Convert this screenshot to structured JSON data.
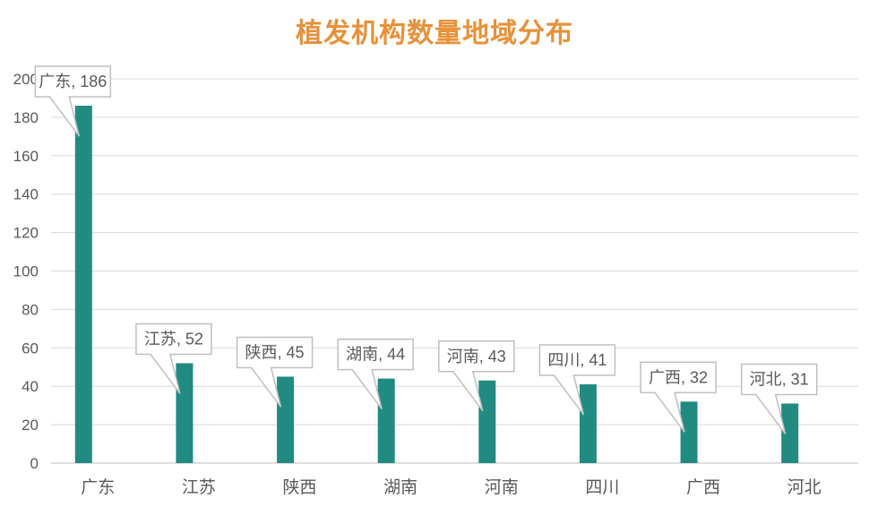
{
  "chart_data": {
    "type": "bar",
    "title": "植发机构数量地域分布",
    "categories": [
      "广东",
      "江苏",
      "陕西",
      "湖南",
      "河南",
      "四川",
      "广西",
      "河北"
    ],
    "values": [
      186,
      52,
      45,
      44,
      43,
      41,
      32,
      31
    ],
    "data_labels": [
      "广东, 186",
      "江苏, 52",
      "陕西, 45",
      "湖南, 44",
      "河南, 43",
      "四川, 41",
      "广西, 32",
      "河北, 31"
    ],
    "ylim": [
      0,
      200
    ],
    "yticks": [
      0,
      20,
      40,
      60,
      80,
      100,
      120,
      140,
      160,
      180,
      200
    ],
    "xlabel": "",
    "ylabel": "",
    "grid": true,
    "legend": "none",
    "colors": {
      "bar": "#218B82",
      "title": "#E8913A",
      "grid": "#D9D9D9",
      "text": "#595959",
      "callout_border": "#BFBFBF"
    }
  }
}
